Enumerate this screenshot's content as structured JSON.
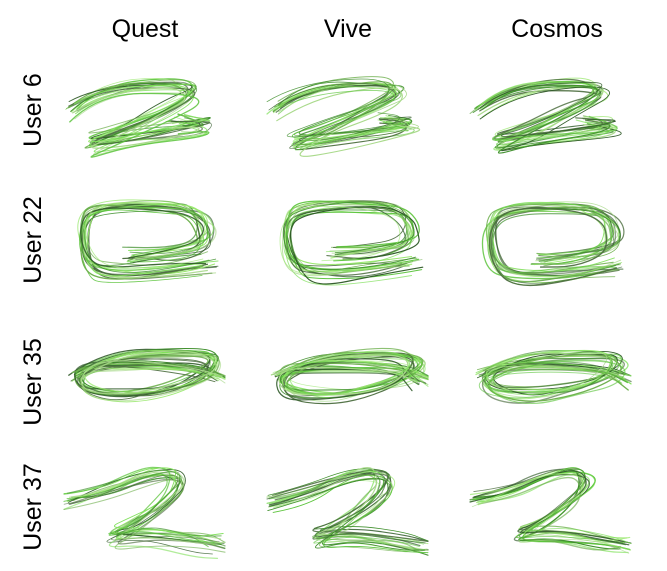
{
  "columns": [
    "Quest",
    "Vive",
    "Cosmos"
  ],
  "rows": [
    "User 6",
    "User 22",
    "User 35",
    "User 37"
  ],
  "colors": {
    "strokes": [
      "#7fe05a",
      "#5cc43c",
      "#3f8f2c",
      "#2f5a28",
      "#9ae86f",
      "#6fb04f",
      "#4c6e3f",
      "#a8d98a"
    ]
  },
  "panels": [
    {
      "row": "User 6",
      "column": "Quest",
      "shape": "z-zigzag"
    },
    {
      "row": "User 6",
      "column": "Vive",
      "shape": "z-zigzag"
    },
    {
      "row": "User 6",
      "column": "Cosmos",
      "shape": "z-zigzag"
    },
    {
      "row": "User 22",
      "column": "Quest",
      "shape": "loop"
    },
    {
      "row": "User 22",
      "column": "Vive",
      "shape": "loop"
    },
    {
      "row": "User 22",
      "column": "Cosmos",
      "shape": "loop"
    },
    {
      "row": "User 35",
      "column": "Quest",
      "shape": "flat-loop"
    },
    {
      "row": "User 35",
      "column": "Vive",
      "shape": "flat-loop"
    },
    {
      "row": "User 35",
      "column": "Cosmos",
      "shape": "flat-loop"
    },
    {
      "row": "User 37",
      "column": "Quest",
      "shape": "lasso"
    },
    {
      "row": "User 37",
      "column": "Vive",
      "shape": "lasso"
    },
    {
      "row": "User 37",
      "column": "Cosmos",
      "shape": "lasso"
    }
  ]
}
